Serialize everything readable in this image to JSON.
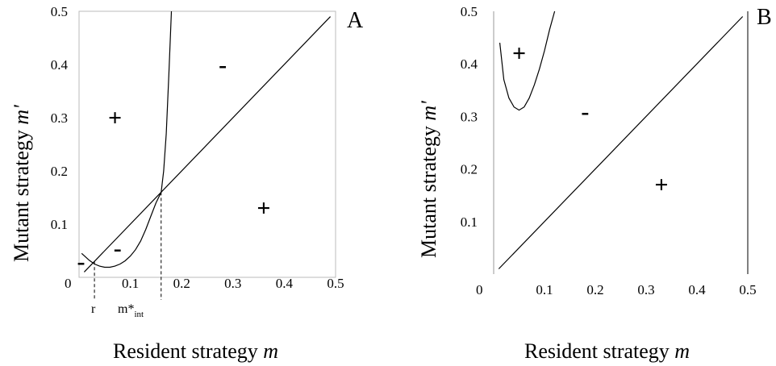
{
  "chart_data": [
    {
      "panel": "A",
      "type": "line",
      "xlabel": "Resident strategy m",
      "ylabel": "Mutant strategy m'",
      "xlim": [
        0,
        0.5
      ],
      "ylim": [
        0,
        0.5
      ],
      "xticks": [
        "0",
        "0.1",
        "0.2",
        "0.3",
        "0.4",
        "0.5"
      ],
      "yticks": [
        "0.1",
        "0.2",
        "0.3",
        "0.4",
        "0.5"
      ],
      "series": [
        {
          "name": "",
          "x": [
            0.01,
            0.49
          ],
          "y": [
            0.01,
            0.49
          ]
        },
        {
          "name": "",
          "x": [
            0.005,
            0.02,
            0.03,
            0.04,
            0.05,
            0.06,
            0.07,
            0.08,
            0.09,
            0.1,
            0.11,
            0.12,
            0.13,
            0.14,
            0.15,
            0.16,
            0.165,
            0.17,
            0.175,
            0.18
          ],
          "y": [
            0.045,
            0.032,
            0.025,
            0.021,
            0.019,
            0.019,
            0.021,
            0.025,
            0.031,
            0.04,
            0.052,
            0.068,
            0.09,
            0.115,
            0.14,
            0.16,
            0.2,
            0.27,
            0.38,
            0.5
          ]
        }
      ],
      "annotations": [
        {
          "text": "+",
          "x": 0.07,
          "y": 0.3
        },
        {
          "text": "-",
          "x": 0.28,
          "y": 0.4
        },
        {
          "text": "+",
          "x": 0.36,
          "y": 0.13
        },
        {
          "text": "-",
          "x": 0.075,
          "y": 0.055
        },
        {
          "text": "-",
          "x": 0.004,
          "y": 0.03
        }
      ],
      "vlines": [
        {
          "label": "r",
          "x": 0.03,
          "y_top": 0.03
        },
        {
          "label": "m*int",
          "x": 0.16,
          "y_top": 0.16
        }
      ]
    },
    {
      "panel": "B",
      "type": "line",
      "xlabel": "Resident strategy m",
      "ylabel": "Mutant strategy m'",
      "xlim": [
        0,
        0.5
      ],
      "ylim": [
        0,
        0.5
      ],
      "xticks": [
        "0",
        "0.1",
        "0.2",
        "0.3",
        "0.4",
        "0.5"
      ],
      "yticks": [
        "0.1",
        "0.2",
        "0.3",
        "0.4",
        "0.5"
      ],
      "series": [
        {
          "name": "",
          "x": [
            0.01,
            0.49
          ],
          "y": [
            0.01,
            0.49
          ]
        },
        {
          "name": "",
          "x": [
            0.012,
            0.02,
            0.03,
            0.04,
            0.05,
            0.06,
            0.07,
            0.08,
            0.09,
            0.1,
            0.11,
            0.12
          ],
          "y": [
            0.44,
            0.37,
            0.335,
            0.318,
            0.312,
            0.318,
            0.335,
            0.36,
            0.39,
            0.425,
            0.465,
            0.5
          ]
        }
      ],
      "annotations": [
        {
          "text": "+",
          "x": 0.05,
          "y": 0.42
        },
        {
          "text": "-",
          "x": 0.18,
          "y": 0.31
        },
        {
          "text": "+",
          "x": 0.33,
          "y": 0.17
        }
      ]
    }
  ],
  "labels": {
    "panel_a": "A",
    "panel_b": "B",
    "r_label": "r",
    "m_int_base": "m*",
    "m_int_sub": "int",
    "x_axis_plain": "Resident strategy ",
    "x_axis_italic": "m",
    "y_axis_plain": "Mutant strategy ",
    "y_axis_italic": "m'"
  }
}
